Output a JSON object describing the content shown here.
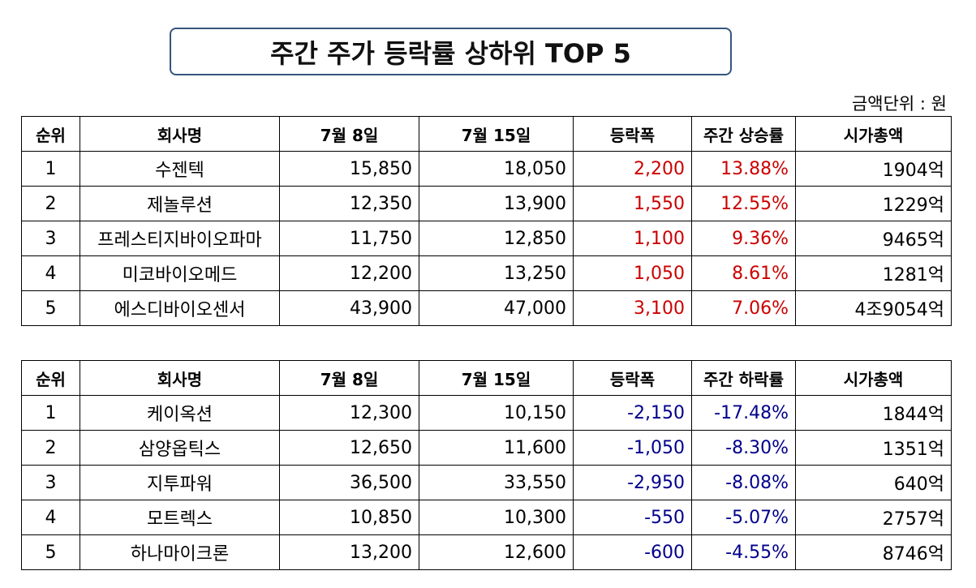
{
  "title": "주간 주가 등락률 상하위 TOP 5",
  "unit_label": "금액단위 : 원",
  "colors": {
    "up": "#cc0000",
    "down": "#00008b",
    "title_border": "#36557e"
  },
  "rise_table": {
    "headers": [
      "순위",
      "회사명",
      "7월 8일",
      "7월 15일",
      "등락폭",
      "주간 상승률",
      "시가총액"
    ],
    "rows": [
      [
        "1",
        "수젠텍",
        "15,850",
        "18,050",
        "2,200",
        "13.88%",
        "1904억"
      ],
      [
        "2",
        "제놀루션",
        "12,350",
        "13,900",
        "1,550",
        "12.55%",
        "1229억"
      ],
      [
        "3",
        "프레스티지바이오파마",
        "11,750",
        "12,850",
        "1,100",
        "9.36%",
        "9465억"
      ],
      [
        "4",
        "미코바이오메드",
        "12,200",
        "13,250",
        "1,050",
        "8.61%",
        "1281억"
      ],
      [
        "5",
        "에스디바이오센서",
        "43,900",
        "47,000",
        "3,100",
        "7.06%",
        "4조9054억"
      ]
    ]
  },
  "fall_table": {
    "headers": [
      "순위",
      "회사명",
      "7월 8일",
      "7월 15일",
      "등락폭",
      "주간 하락률",
      "시가총액"
    ],
    "rows": [
      [
        "1",
        "케이옥션",
        "12,300",
        "10,150",
        "-2,150",
        "-17.48%",
        "1844억"
      ],
      [
        "2",
        "삼양옵틱스",
        "12,650",
        "11,600",
        "-1,050",
        "-8.30%",
        "1351억"
      ],
      [
        "3",
        "지투파워",
        "36,500",
        "33,550",
        "-2,950",
        "-8.08%",
        "640억"
      ],
      [
        "4",
        "모트렉스",
        "10,850",
        "10,300",
        "-550",
        "-5.07%",
        "2757억"
      ],
      [
        "5",
        "하나마이크론",
        "13,200",
        "12,600",
        "-600",
        "-4.55%",
        "8746억"
      ]
    ]
  }
}
